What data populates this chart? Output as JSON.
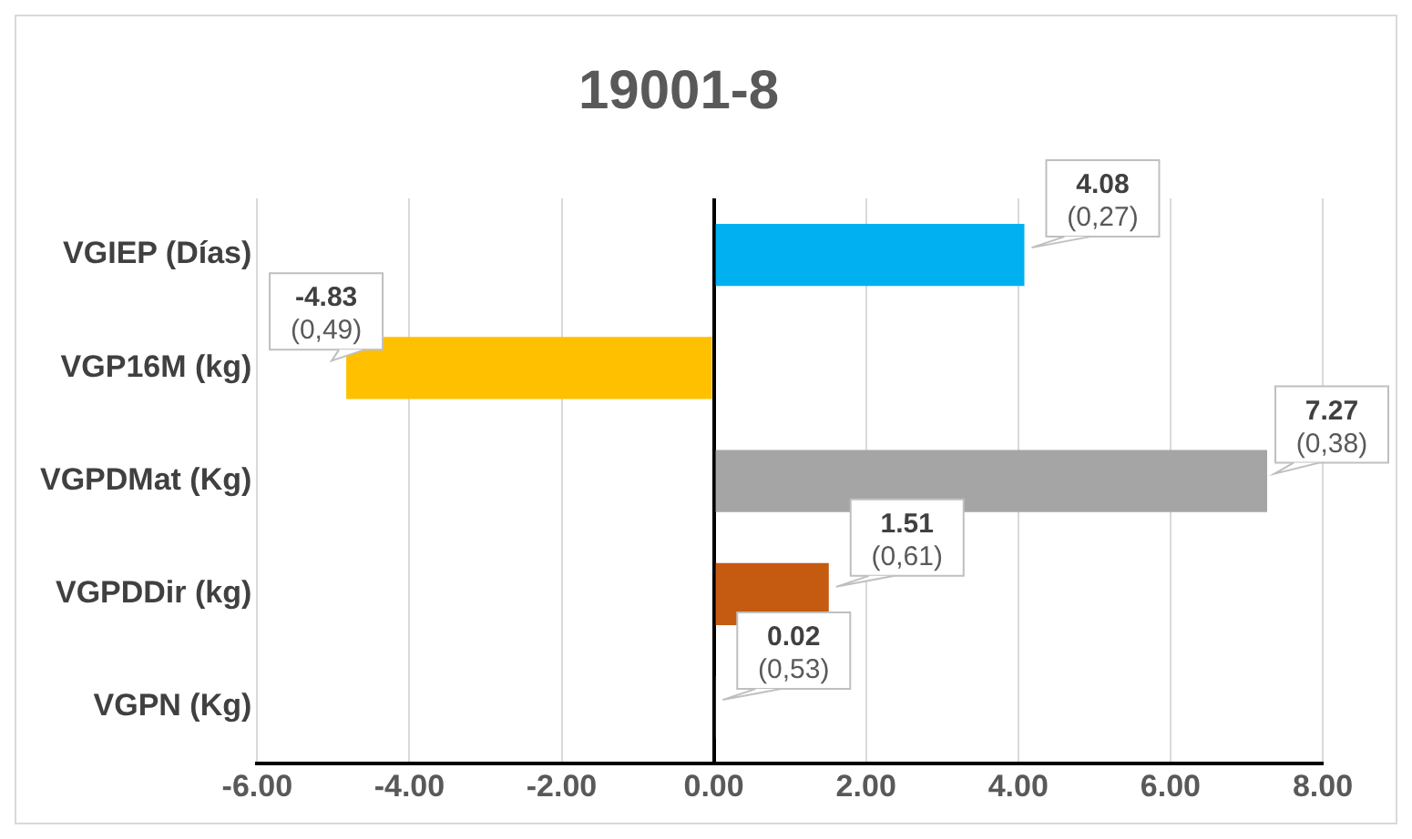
{
  "chart_data": {
    "type": "bar",
    "orientation": "horizontal",
    "title": "19001-8",
    "categories": [
      "VGIEP (Días)",
      "VGP16M (kg)",
      "VGPDMat (Kg)",
      "VGPDDir (kg)",
      "VGPN (Kg)"
    ],
    "values": [
      4.08,
      -4.83,
      7.27,
      1.51,
      0.02
    ],
    "colors": [
      "#00b0f0",
      "#ffc000",
      "#a5a5a5",
      "#c55a11",
      "#4472c4"
    ],
    "value_labels": [
      "4.08\n(0,27)",
      "-4.83\n(0,49)",
      "7.27\n(0,38)",
      "1.51\n(0,61)",
      "0.02\n(0,53)"
    ],
    "xlim": [
      -6,
      8
    ],
    "xticks": [
      {
        "value": -6,
        "label": "-6.00"
      },
      {
        "value": -4,
        "label": "-4.00"
      },
      {
        "value": -2,
        "label": "-2.00"
      },
      {
        "value": 0,
        "label": "0.00"
      },
      {
        "value": 2,
        "label": "2.00"
      },
      {
        "value": 4,
        "label": "4.00"
      },
      {
        "value": 6,
        "label": "6.00"
      },
      {
        "value": 8,
        "label": "8.00"
      }
    ],
    "grid": "x",
    "legend": false
  }
}
